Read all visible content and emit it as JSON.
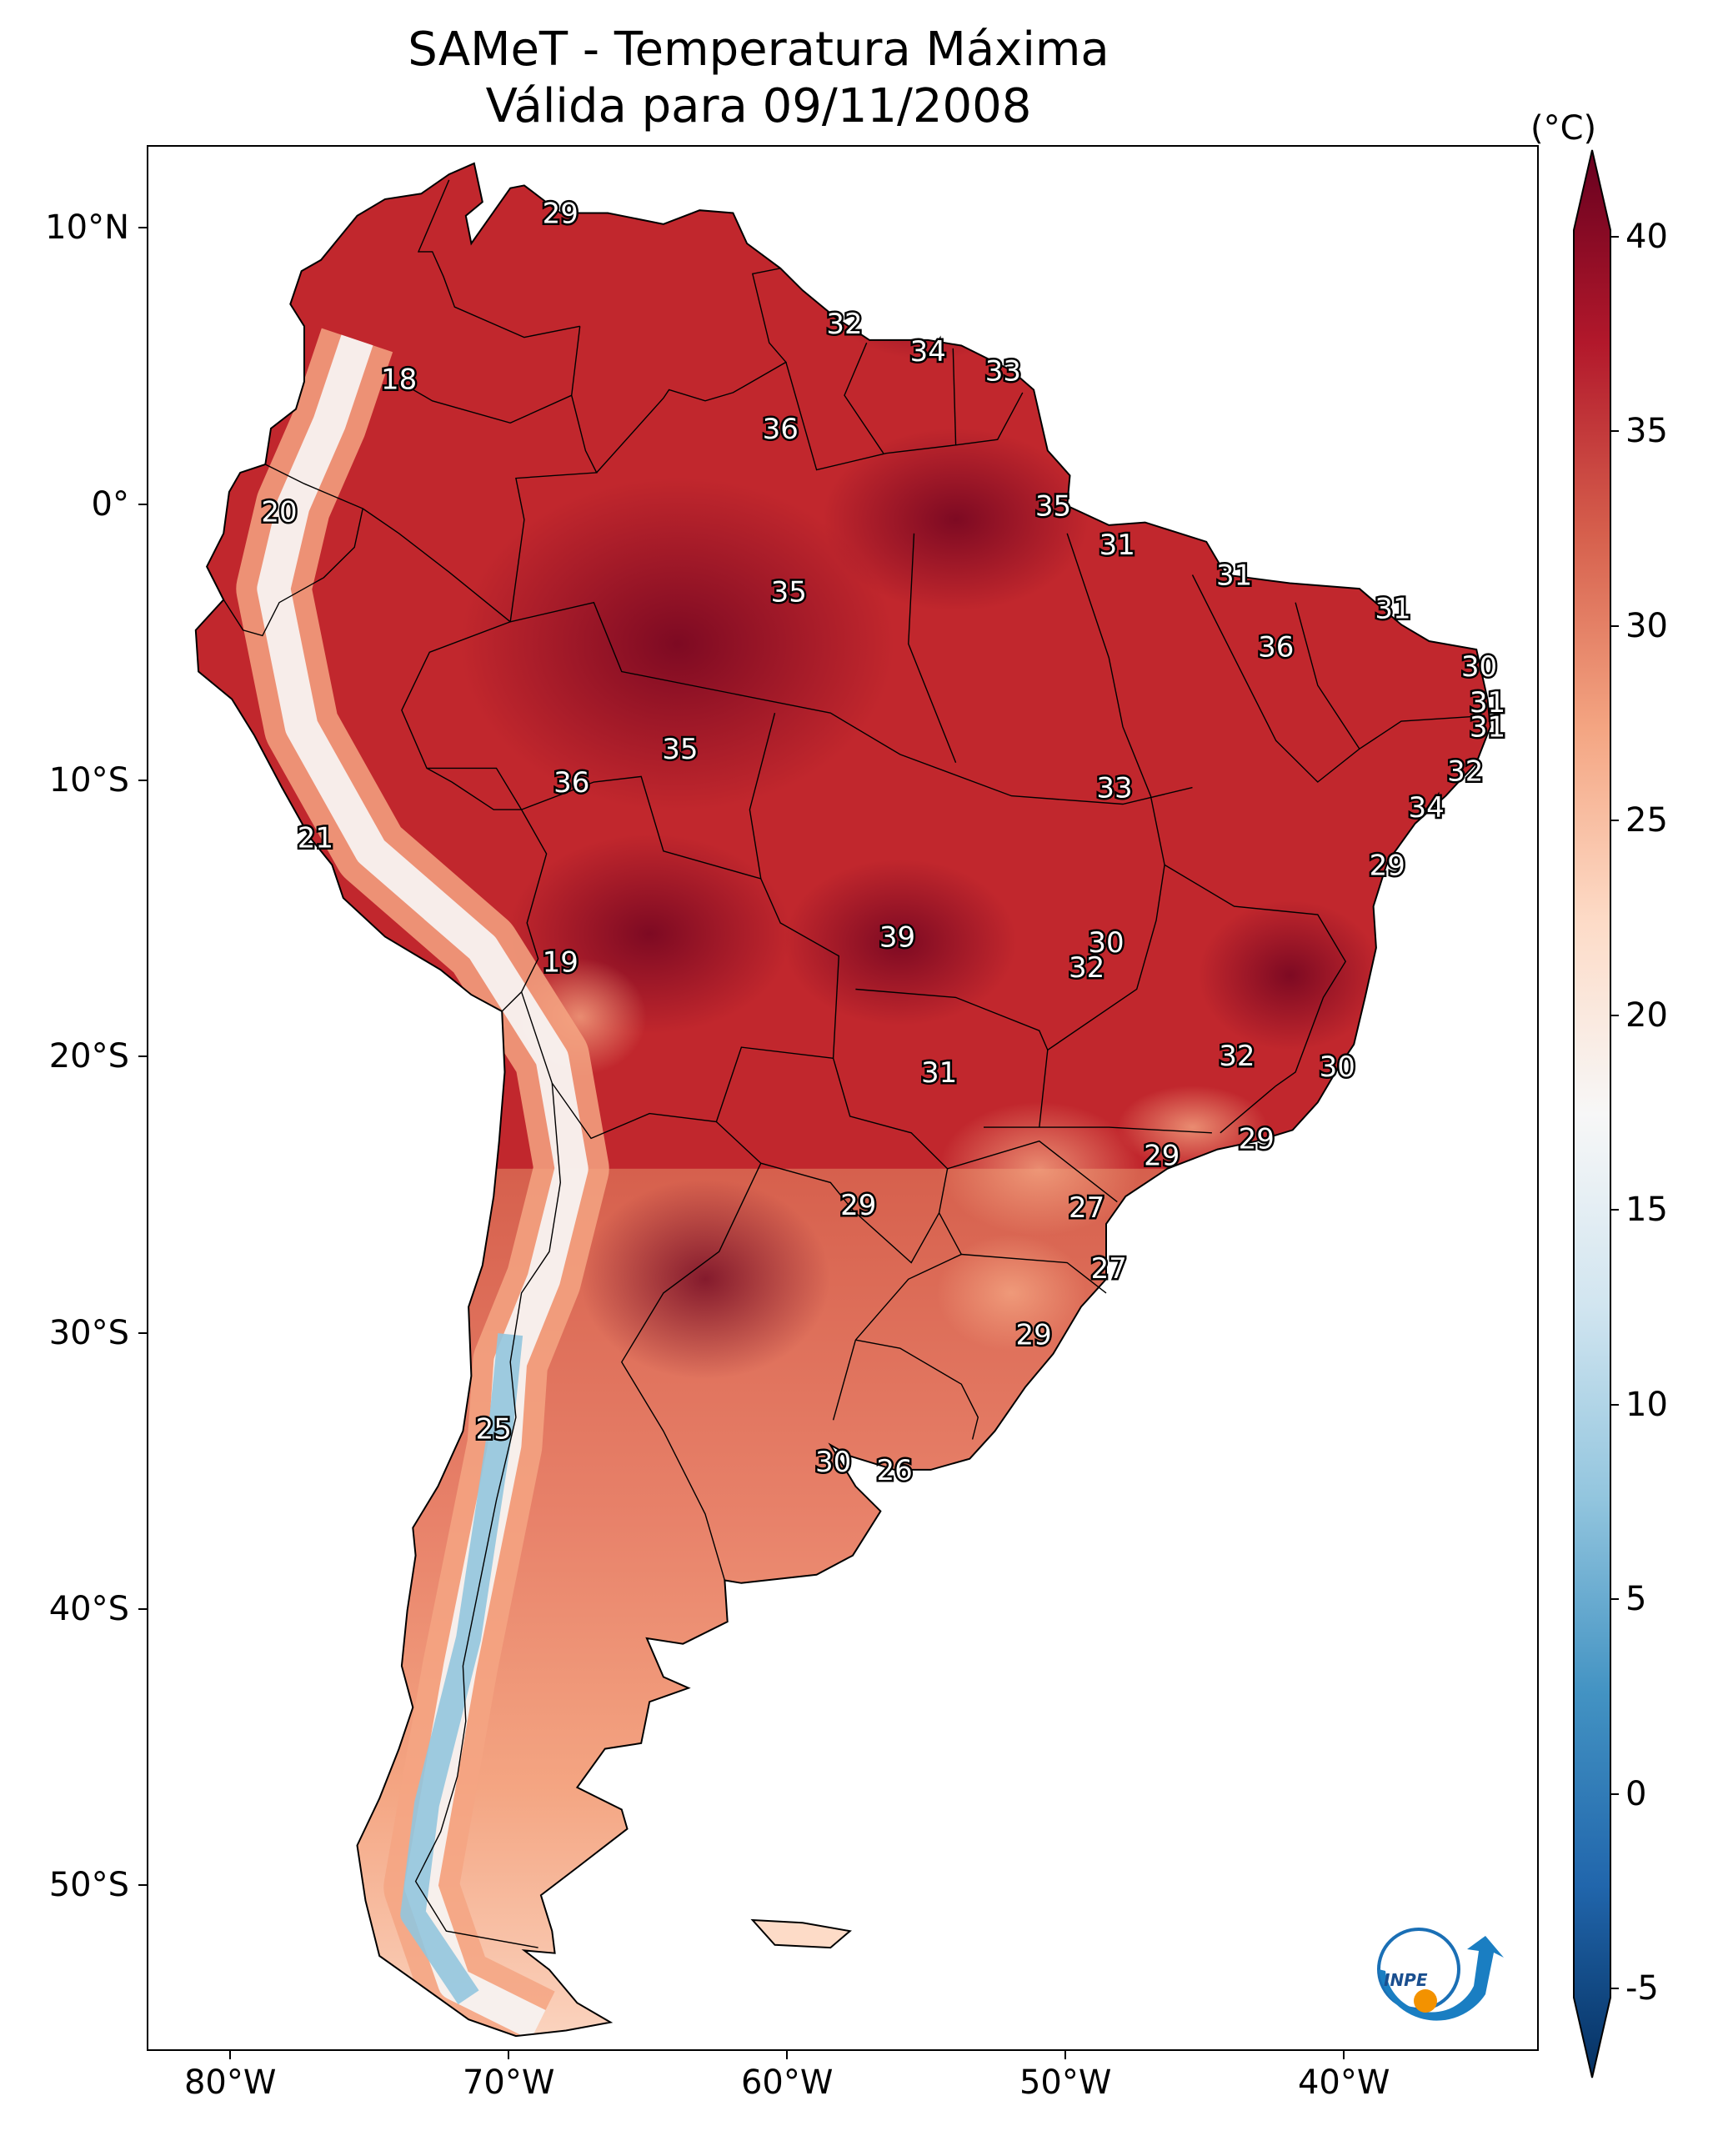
{
  "title_line1": "SAMeT - Temperatura Máxima",
  "title_line2": "Válida para 09/11/2008",
  "colorbar": {
    "unit": "(°C)",
    "ticks": [
      "40",
      "35",
      "30",
      "25",
      "20",
      "15",
      "10",
      "5",
      "0",
      "-5"
    ],
    "colors": [
      "#67001f",
      "#b2182b",
      "#d6604d",
      "#f4a582",
      "#fddbc7",
      "#f7f7f7",
      "#d1e5f0",
      "#92c5de",
      "#4393c3",
      "#2166ac",
      "#053061"
    ]
  },
  "lat_labels": [
    "10°N",
    "0°",
    "10°S",
    "20°S",
    "30°S",
    "40°S",
    "50°S"
  ],
  "lon_labels": [
    "80°W",
    "70°W",
    "60°W",
    "50°W",
    "40°W"
  ],
  "stations": [
    {
      "value": "29",
      "lon": -68.2,
      "lat": 10.6
    },
    {
      "value": "32",
      "lon": -58.0,
      "lat": 6.6
    },
    {
      "value": "34",
      "lon": -55.0,
      "lat": 5.6
    },
    {
      "value": "33",
      "lon": -52.3,
      "lat": 4.9
    },
    {
      "value": "18",
      "lon": -74.0,
      "lat": 4.6
    },
    {
      "value": "36",
      "lon": -60.3,
      "lat": 2.8
    },
    {
      "value": "35",
      "lon": -50.5,
      "lat": 0.0
    },
    {
      "value": "20",
      "lon": -78.3,
      "lat": -0.2
    },
    {
      "value": "31",
      "lon": -48.2,
      "lat": -1.4
    },
    {
      "value": "31",
      "lon": -44.0,
      "lat": -2.5
    },
    {
      "value": "35",
      "lon": -60.0,
      "lat": -3.1
    },
    {
      "value": "31",
      "lon": -38.3,
      "lat": -3.7
    },
    {
      "value": "36",
      "lon": -42.5,
      "lat": -5.1
    },
    {
      "value": "30",
      "lon": -35.2,
      "lat": -5.8
    },
    {
      "value": "31",
      "lon": -34.9,
      "lat": -7.1
    },
    {
      "value": "31",
      "lon": -34.9,
      "lat": -8.0
    },
    {
      "value": "35",
      "lon": -63.9,
      "lat": -8.8
    },
    {
      "value": "32",
      "lon": -35.7,
      "lat": -9.6
    },
    {
      "value": "36",
      "lon": -67.8,
      "lat": -10.0
    },
    {
      "value": "33",
      "lon": -48.3,
      "lat": -10.2
    },
    {
      "value": "34",
      "lon": -37.1,
      "lat": -10.9
    },
    {
      "value": "21",
      "lon": -77.0,
      "lat": -12.0
    },
    {
      "value": "29",
      "lon": -38.5,
      "lat": -13.0
    },
    {
      "value": "39",
      "lon": -56.1,
      "lat": -15.6
    },
    {
      "value": "30",
      "lon": -48.6,
      "lat": -15.8
    },
    {
      "value": "32",
      "lon": -49.3,
      "lat": -16.7
    },
    {
      "value": "19",
      "lon": -68.2,
      "lat": -16.5
    },
    {
      "value": "32",
      "lon": -43.9,
      "lat": -19.9
    },
    {
      "value": "30",
      "lon": -40.3,
      "lat": -20.3
    },
    {
      "value": "31",
      "lon": -54.6,
      "lat": -20.5
    },
    {
      "value": "29",
      "lon": -43.2,
      "lat": -22.9
    },
    {
      "value": "29",
      "lon": -46.6,
      "lat": -23.5
    },
    {
      "value": "29",
      "lon": -57.5,
      "lat": -25.3
    },
    {
      "value": "27",
      "lon": -49.3,
      "lat": -25.4
    },
    {
      "value": "27",
      "lon": -48.5,
      "lat": -27.6
    },
    {
      "value": "29",
      "lon": -51.2,
      "lat": -30.0
    },
    {
      "value": "25",
      "lon": -70.6,
      "lat": -33.4
    },
    {
      "value": "30",
      "lon": -58.4,
      "lat": -34.6
    },
    {
      "value": "26",
      "lon": -56.2,
      "lat": -34.9
    }
  ]
}
